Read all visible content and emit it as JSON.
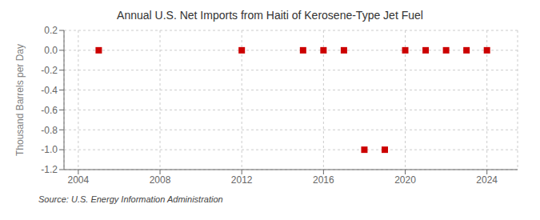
{
  "chart_data": {
    "type": "scatter",
    "title": "Annual U.S. Net Imports from Haiti of Kerosene-Type Jet Fuel",
    "y_label": "Thousand Barrels per Day",
    "annotations": [
      "Source: U.S. Energy Information Administration"
    ],
    "x": [
      2005,
      2012,
      2015,
      2016,
      2017,
      2018,
      2019,
      2020,
      2021,
      2022,
      2023,
      2024
    ],
    "values": [
      0,
      0,
      0,
      0,
      0,
      -1.0,
      -1.0,
      0,
      0,
      0,
      0,
      0
    ],
    "color": "#cc0000",
    "marker": "square",
    "xlim": [
      2003.3,
      2025.5
    ],
    "xticks": [
      2004,
      2008,
      2012,
      2016,
      2020,
      2024
    ],
    "ylim": [
      -1.2,
      0.2
    ],
    "yticks": [
      0.2,
      {
        "value": 0,
        "label": "0.0"
      },
      -0.2,
      -0.4,
      -0.6,
      -0.8,
      {
        "value": -1,
        "label": "-1.0"
      },
      -1.2
    ],
    "grid": true
  }
}
